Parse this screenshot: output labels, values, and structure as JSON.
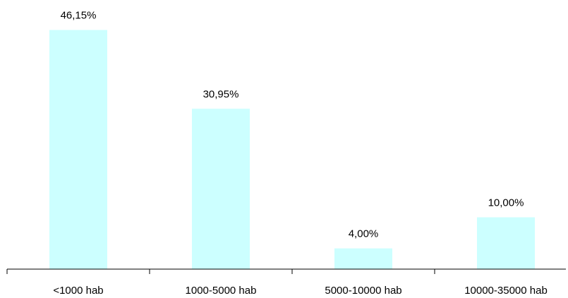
{
  "chart_data": {
    "type": "bar",
    "title": "",
    "xlabel": "",
    "ylabel": "",
    "categories": [
      "<1000 hab",
      "1000-5000 hab",
      "5000-10000 hab",
      "10000-35000 hab"
    ],
    "values": [
      46.15,
      30.95,
      4.0,
      10.0
    ],
    "data_labels": [
      "46,15%",
      "30,95%",
      "4,00%",
      "10,00%"
    ],
    "ylim": [
      0,
      50
    ],
    "grid": false,
    "legend": "none",
    "colors": {
      "bar": "#ccffff",
      "axis": "#000000",
      "text": "#000000"
    }
  }
}
